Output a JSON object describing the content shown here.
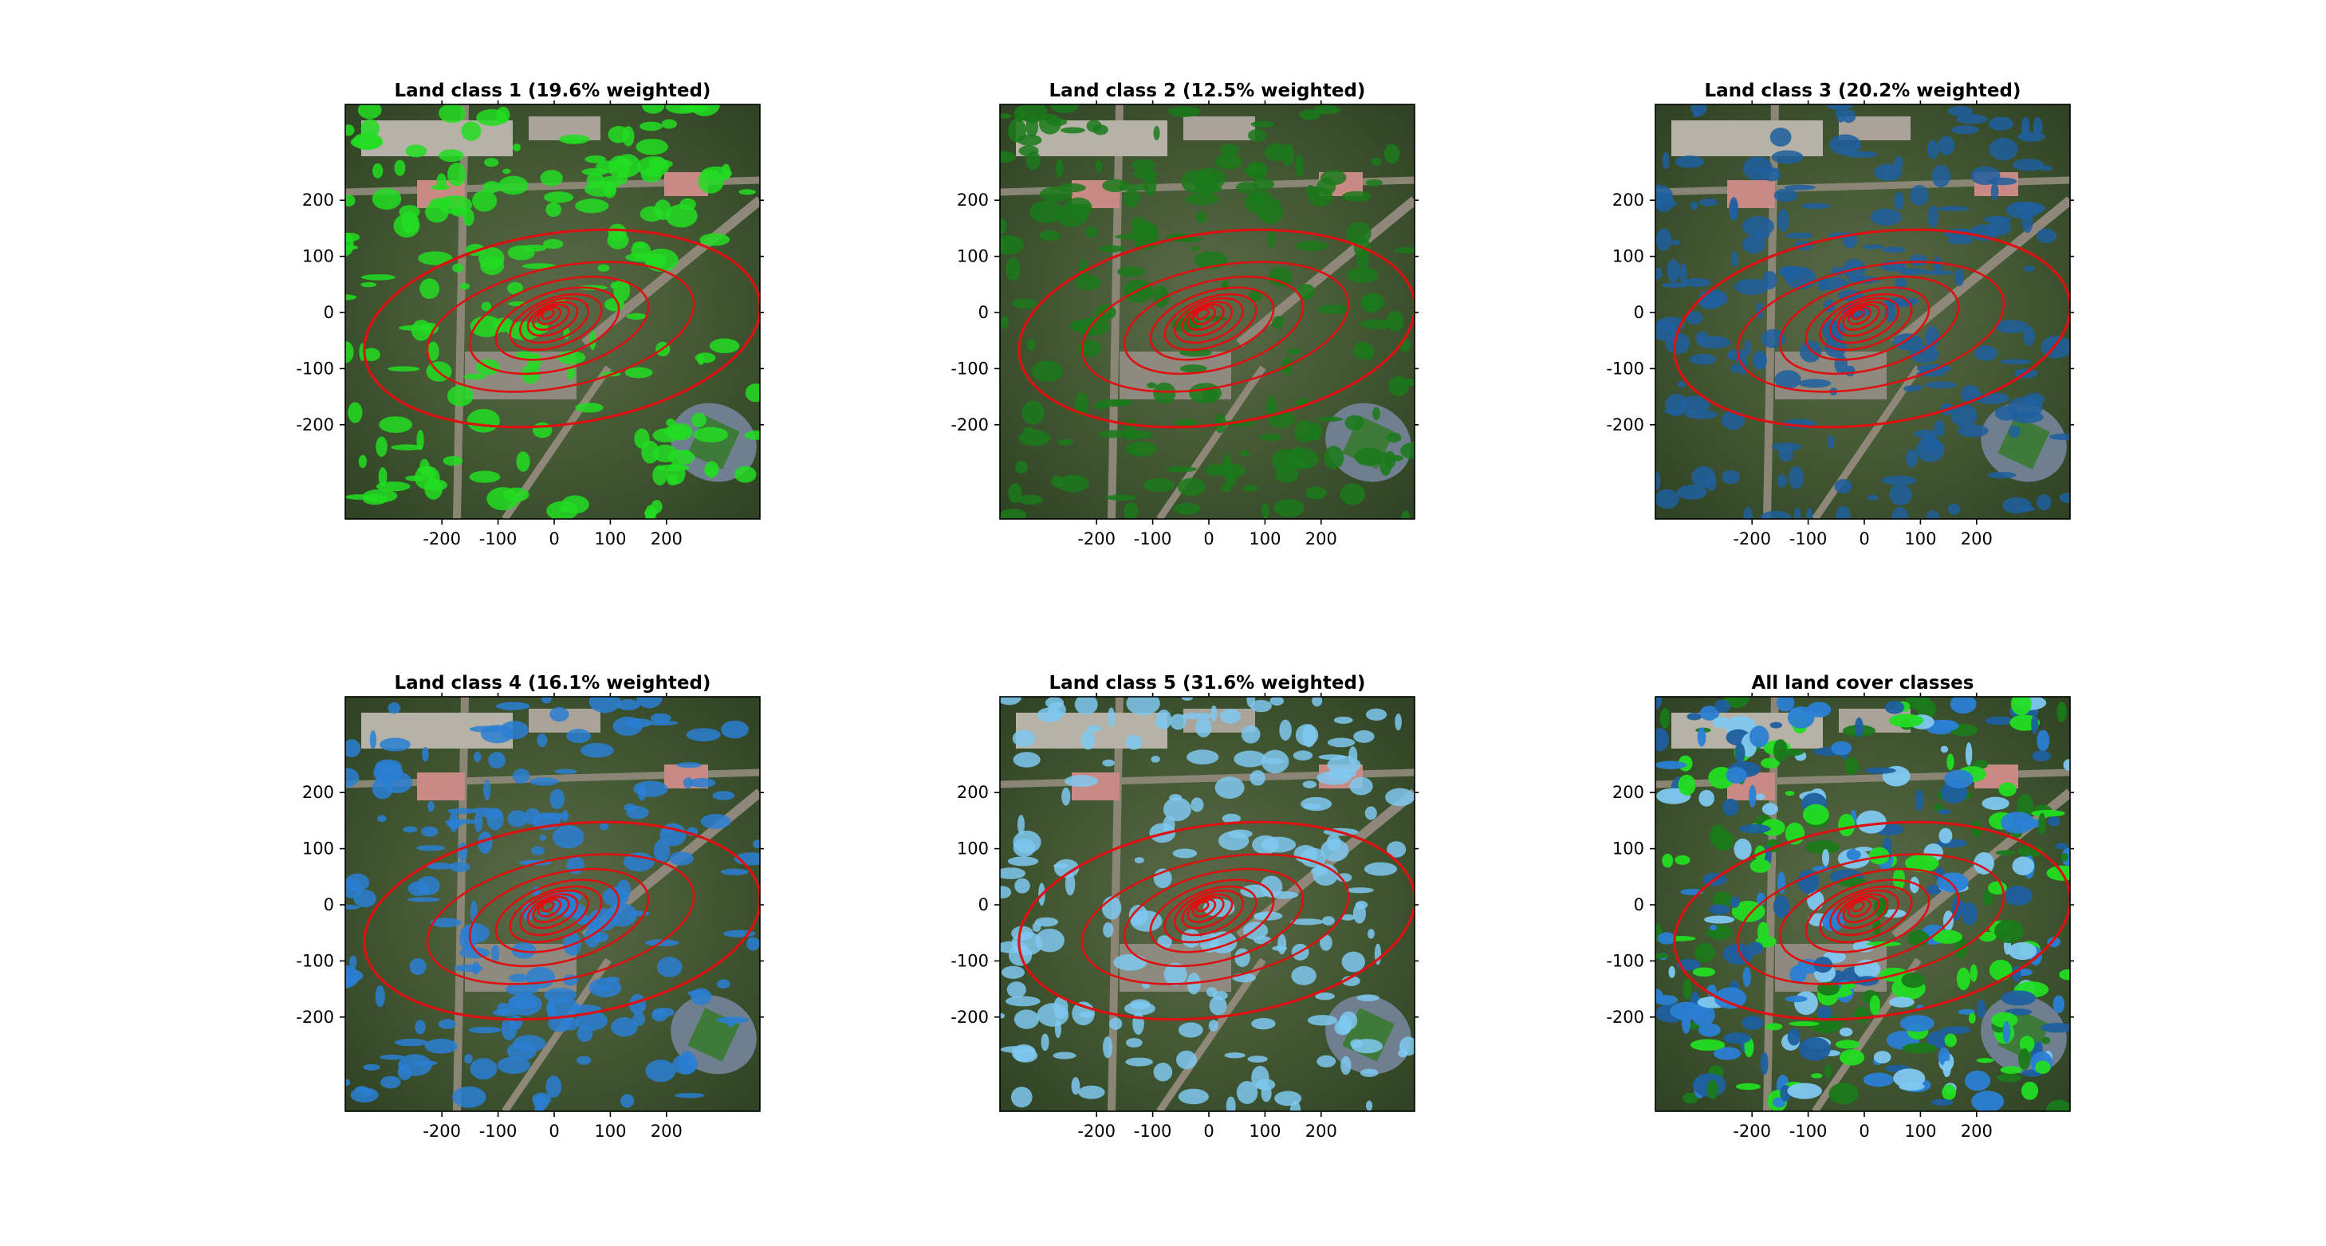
{
  "chart_data": [
    {
      "type": "heatmap",
      "title": "Land class 1 (19.6% weighted)",
      "xticks": [
        -200,
        -100,
        0,
        100,
        200
      ],
      "yticks": [
        200,
        100,
        0,
        -100,
        -200
      ],
      "xlim": [
        -370,
        370
      ],
      "ylim": [
        -370,
        370
      ],
      "overlay_color": "#22dd22",
      "contour_color": "#dd1111"
    },
    {
      "type": "heatmap",
      "title": "Land class 2 (12.5% weighted)",
      "xticks": [
        -200,
        -100,
        0,
        100,
        200
      ],
      "yticks": [
        200,
        100,
        0,
        -100,
        -200
      ],
      "xlim": [
        -370,
        370
      ],
      "ylim": [
        -370,
        370
      ],
      "overlay_color": "#1a7a1a",
      "contour_color": "#dd1111"
    },
    {
      "type": "heatmap",
      "title": "Land class 3 (20.2% weighted)",
      "xticks": [
        -200,
        -100,
        0,
        100,
        200
      ],
      "yticks": [
        200,
        100,
        0,
        -100,
        -200
      ],
      "xlim": [
        -370,
        370
      ],
      "ylim": [
        -370,
        370
      ],
      "overlay_color": "#1f5f9f",
      "contour_color": "#dd1111"
    },
    {
      "type": "heatmap",
      "title": "Land class 4 (16.1% weighted)",
      "xticks": [
        -200,
        -100,
        0,
        100,
        200
      ],
      "yticks": [
        200,
        100,
        0,
        -100,
        -200
      ],
      "xlim": [
        -370,
        370
      ],
      "ylim": [
        -370,
        370
      ],
      "overlay_color": "#2a7fd4",
      "contour_color": "#dd1111"
    },
    {
      "type": "heatmap",
      "title": "Land class 5 (31.6% weighted)",
      "xticks": [
        -200,
        -100,
        0,
        100,
        200
      ],
      "yticks": [
        200,
        100,
        0,
        -100,
        -200
      ],
      "xlim": [
        -370,
        370
      ],
      "ylim": [
        -370,
        370
      ],
      "overlay_color": "#7fc8f0",
      "contour_color": "#dd1111"
    },
    {
      "type": "heatmap",
      "title": "All land cover classes",
      "xticks": [
        -200,
        -100,
        0,
        100,
        200
      ],
      "yticks": [
        200,
        100,
        0,
        -100,
        -200
      ],
      "xlim": [
        -370,
        370
      ],
      "ylim": [
        -370,
        370
      ],
      "overlay_color": "mixed",
      "contour_color": "#dd1111"
    }
  ]
}
